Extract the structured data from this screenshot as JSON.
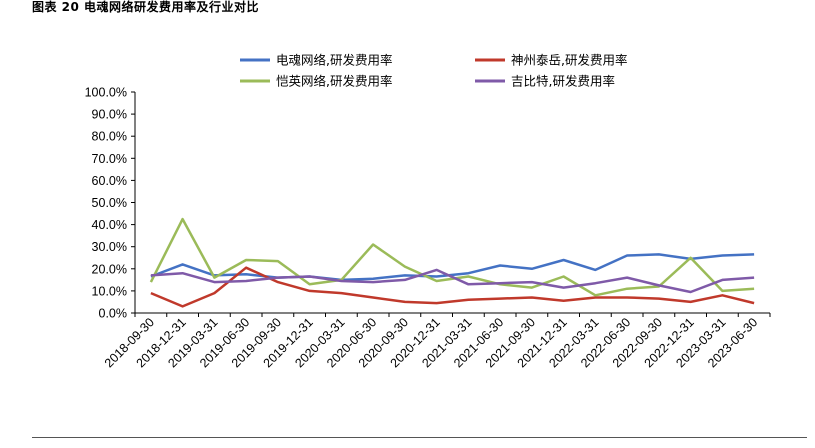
{
  "header": {
    "figure_title": "图表 20 电魂网络研发费用率及行业对比"
  },
  "chart_data": {
    "type": "line",
    "title": "",
    "xlabel": "",
    "ylabel": "",
    "ylim": [
      0,
      100
    ],
    "y_ticks": [
      "0.0%",
      "10.0%",
      "20.0%",
      "30.0%",
      "40.0%",
      "50.0%",
      "60.0%",
      "70.0%",
      "80.0%",
      "90.0%",
      "100.0%"
    ],
    "grid": false,
    "legend": "top",
    "categories": [
      "2018-09-30",
      "2018-12-31",
      "2019-03-31",
      "2019-06-30",
      "2019-09-30",
      "2019-12-31",
      "2020-03-31",
      "2020-06-30",
      "2020-09-30",
      "2020-12-31",
      "2021-03-31",
      "2021-06-30",
      "2021-09-30",
      "2021-12-31",
      "2022-03-31",
      "2022-06-30",
      "2022-09-30",
      "2022-12-31",
      "2023-03-31",
      "2023-06-30"
    ],
    "series": [
      {
        "name": "电魂网络,研发费用率",
        "color": "#4472C4",
        "values": [
          16.5,
          22,
          17,
          17.5,
          16,
          16.5,
          15,
          15.5,
          17,
          16.5,
          18,
          21.5,
          20,
          24,
          19.5,
          26,
          26.5,
          24.5,
          26,
          26.5
        ]
      },
      {
        "name": "神州泰岳,研发费用率",
        "color": "#C0392B",
        "values": [
          9,
          3,
          9,
          20.5,
          14,
          10,
          9,
          7,
          5,
          4.5,
          6,
          6.5,
          7,
          5.5,
          7,
          7,
          6.5,
          5,
          8,
          4.5
        ]
      },
      {
        "name": "恺英网络,研发费用率",
        "color": "#9BBB59",
        "values": [
          14,
          42.5,
          16,
          24,
          23.5,
          13,
          15,
          31,
          21,
          14.5,
          16.5,
          13,
          11.5,
          16.5,
          8,
          11,
          12,
          25,
          10,
          11
        ]
      },
      {
        "name": "吉比特,研发费用率",
        "color": "#7F5AA8",
        "values": [
          17,
          18,
          14,
          14.5,
          16,
          16.5,
          14.5,
          14,
          15,
          19.5,
          13,
          13.5,
          14,
          11.5,
          13.5,
          16,
          12.5,
          9.5,
          15,
          16
        ]
      }
    ]
  }
}
